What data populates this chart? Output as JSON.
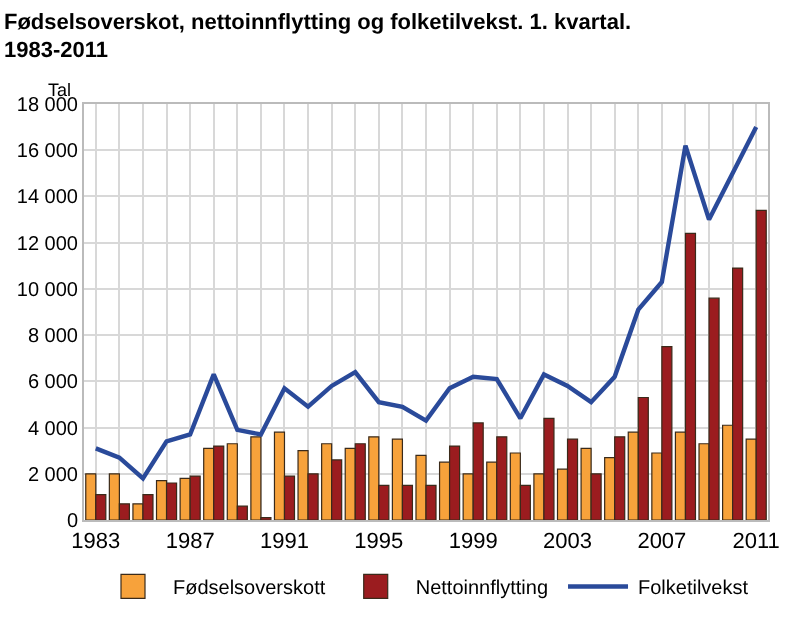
{
  "chart_data": {
    "type": "bar",
    "title": "Fødselsoverskot, nettoinnflytting og folketilvekst. 1. kvartal. 1983-2011",
    "ylabel": "Tal",
    "x": [
      1983,
      1984,
      1985,
      1986,
      1987,
      1988,
      1989,
      1990,
      1991,
      1992,
      1993,
      1994,
      1995,
      1996,
      1997,
      1998,
      1999,
      2000,
      2001,
      2002,
      2003,
      2004,
      2005,
      2006,
      2007,
      2008,
      2009,
      2010,
      2011
    ],
    "series": [
      {
        "name": "Fødselsoverskott",
        "color": "#f7a23b",
        "values": [
          2000,
          2000,
          700,
          1700,
          1800,
          3100,
          3300,
          3600,
          3800,
          3000,
          3300,
          3100,
          3600,
          3500,
          2800,
          2500,
          2000,
          2500,
          2900,
          2000,
          2200,
          3100,
          2700,
          3800,
          2900,
          3800,
          3300,
          4100,
          3500
        ]
      },
      {
        "name": "Nettoinnflytting",
        "color": "#9b1c1f",
        "values": [
          1100,
          700,
          1100,
          1600,
          1900,
          3200,
          600,
          100,
          1900,
          2000,
          2600,
          3300,
          1500,
          1500,
          1500,
          3200,
          4200,
          3600,
          1500,
          4400,
          3500,
          2000,
          3600,
          5300,
          7500,
          12400,
          9600,
          10900,
          13400
        ]
      },
      {
        "name": "Folketilvekst",
        "type": "line",
        "color": "#2a4a9a",
        "values": [
          3100,
          2700,
          1800,
          3400,
          3700,
          6300,
          3900,
          3700,
          5700,
          4900,
          5800,
          6400,
          5100,
          4900,
          4300,
          5700,
          6200,
          6100,
          4400,
          6300,
          5800,
          5100,
          6200,
          9100,
          10300,
          16200,
          13000,
          15000,
          17000
        ]
      }
    ],
    "xlim": [
      1982.5,
      2011.5
    ],
    "xticks": [
      {
        "value": 1983,
        "label": "1983"
      },
      {
        "value": 1984,
        "label": null
      },
      {
        "value": 1985,
        "label": null
      },
      {
        "value": 1986,
        "label": null
      },
      {
        "value": 1987,
        "label": "1987"
      },
      {
        "value": 1988,
        "label": null
      },
      {
        "value": 1989,
        "label": null
      },
      {
        "value": 1990,
        "label": null
      },
      {
        "value": 1991,
        "label": "1991"
      },
      {
        "value": 1992,
        "label": null
      },
      {
        "value": 1993,
        "label": null
      },
      {
        "value": 1994,
        "label": null
      },
      {
        "value": 1995,
        "label": "1995"
      },
      {
        "value": 1996,
        "label": null
      },
      {
        "value": 1997,
        "label": null
      },
      {
        "value": 1998,
        "label": null
      },
      {
        "value": 1999,
        "label": "1999"
      },
      {
        "value": 2000,
        "label": null
      },
      {
        "value": 2001,
        "label": null
      },
      {
        "value": 2002,
        "label": null
      },
      {
        "value": 2003,
        "label": "2003"
      },
      {
        "value": 2004,
        "label": null
      },
      {
        "value": 2005,
        "label": null
      },
      {
        "value": 2006,
        "label": null
      },
      {
        "value": 2007,
        "label": "2007"
      },
      {
        "value": 2008,
        "label": null
      },
      {
        "value": 2009,
        "label": null
      },
      {
        "value": 2010,
        "label": null
      },
      {
        "value": 2011,
        "label": "2011"
      }
    ],
    "ylim": [
      0,
      18000
    ],
    "yticks": [
      0,
      {
        "value": 2000,
        "label": "2 000"
      },
      {
        "value": 4000,
        "label": "4 000"
      },
      {
        "value": 6000,
        "label": "6 000"
      },
      {
        "value": 8000,
        "label": "8 000"
      },
      {
        "value": 10000,
        "label": "10 000"
      },
      {
        "value": 12000,
        "label": "12 000"
      },
      {
        "value": 14000,
        "label": "14 000"
      },
      {
        "value": 16000,
        "label": "16 000"
      },
      {
        "value": 18000,
        "label": "18 000"
      }
    ],
    "grid": true,
    "legend": "bottom"
  }
}
